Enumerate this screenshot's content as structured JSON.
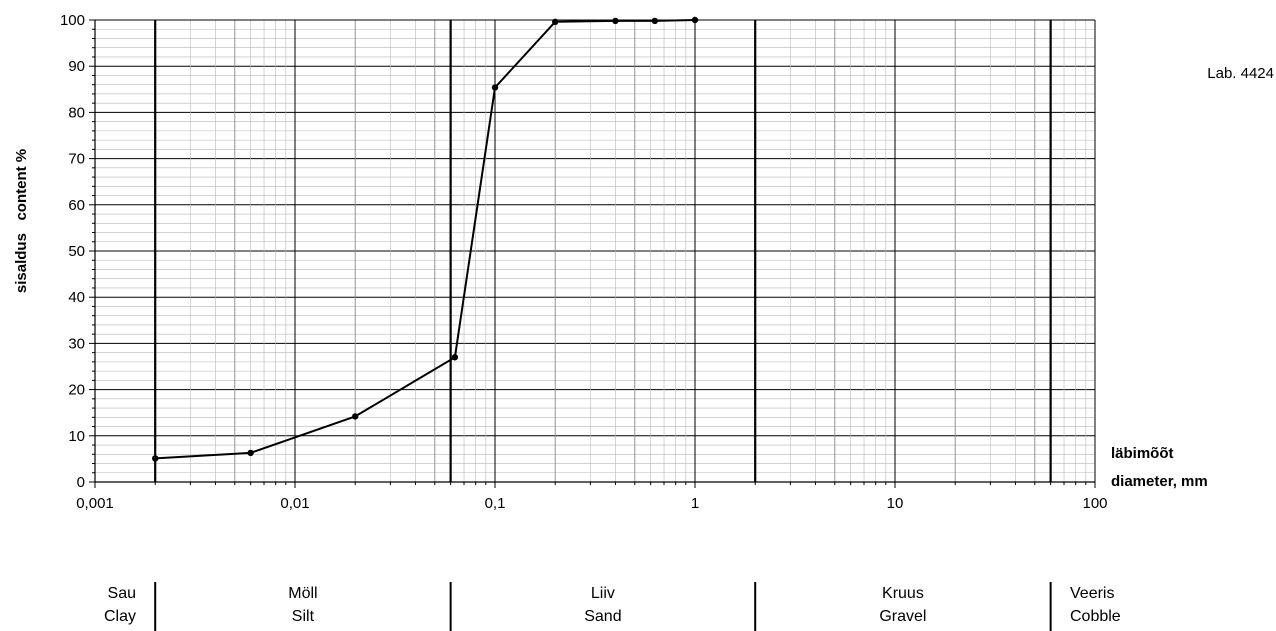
{
  "chart_data": {
    "type": "line",
    "xscale": "log",
    "xlim": [
      0.001,
      100
    ],
    "ylim": [
      0,
      100
    ],
    "grid": true,
    "xlabel_lines": [
      "läbimõõt",
      "diameter, mm"
    ],
    "ylabel": "sisaldus   content %",
    "x_tick_labels": [
      "0,001",
      "0,01",
      "0,1",
      "1",
      "10",
      "100"
    ],
    "y_tick_labels": [
      "0",
      "10",
      "20",
      "30",
      "40",
      "50",
      "60",
      "70",
      "80",
      "90",
      "100"
    ],
    "annotation": "Lab. 4424",
    "fraction_boundaries": [
      0.002,
      0.06,
      2,
      60
    ],
    "fractions": [
      {
        "et": "Sau",
        "en": "Clay"
      },
      {
        "et": "Möll",
        "en": "Silt"
      },
      {
        "et": "Liiv",
        "en": "Sand"
      },
      {
        "et": "Kruus",
        "en": "Gravel"
      },
      {
        "et": "Veeris",
        "en": "Cobble"
      }
    ],
    "series": [
      {
        "x": [
          0.002,
          0.006,
          0.02,
          0.063,
          0.1,
          0.2,
          0.4,
          0.63,
          1.0
        ],
        "y": [
          5.1,
          6.3,
          14.2,
          27.0,
          85.4,
          99.6,
          99.8,
          99.8,
          100.0
        ]
      }
    ],
    "colors": {
      "line": "#000000",
      "grid_major": "#8a8a8a",
      "grid_minor": "#b8b8b8",
      "background": "#ffffff"
    }
  }
}
